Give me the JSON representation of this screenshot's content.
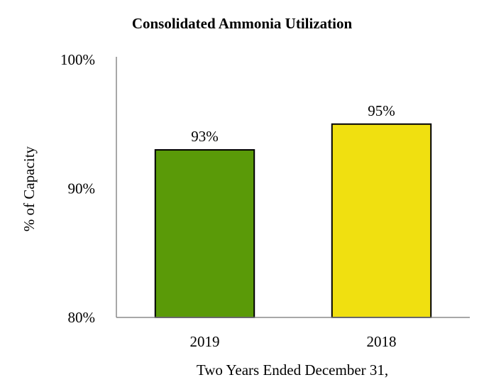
{
  "chart_data": {
    "type": "bar",
    "title": "Consolidated Ammonia Utilization",
    "xlabel": "Two Years Ended December 31,",
    "ylabel": "% of Capacity",
    "categories": [
      "2019",
      "2018"
    ],
    "values": [
      93,
      95
    ],
    "data_labels": [
      "93%",
      "95%"
    ],
    "ylim": [
      80,
      100
    ],
    "yticks": [
      80,
      90,
      100
    ],
    "ytick_labels": [
      "80%",
      "90%",
      "100%"
    ],
    "colors": [
      "#5a9a08",
      "#f0e010"
    ],
    "grid": false,
    "legend": "none"
  }
}
